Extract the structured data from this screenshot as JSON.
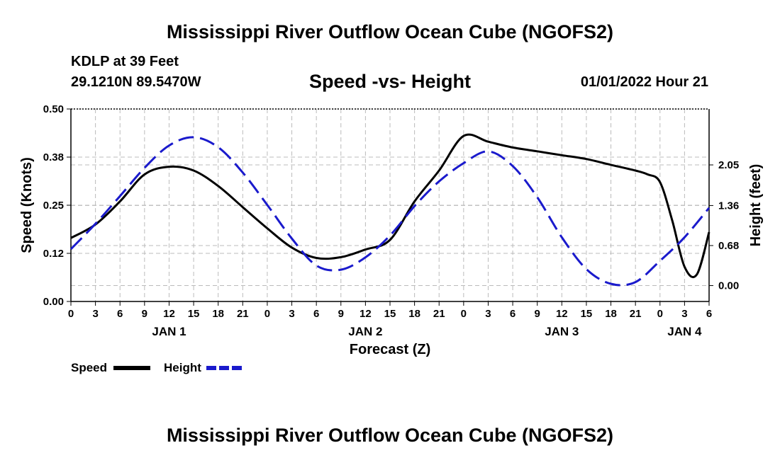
{
  "page": {
    "title": "Mississippi River Outflow Ocean Cube (NGOFS2)",
    "station": "KDLP at 39 Feet",
    "coords": "29.1210N  89.5470W",
    "subtitle": "Speed -vs- Height",
    "datetime": "01/01/2022 Hour 21",
    "footer_title": "Mississippi River Outflow Ocean Cube (NGOFS2)"
  },
  "chart_data": {
    "type": "line",
    "xlabel": "Forecast (Z)",
    "ylabel": "Speed (Knots)",
    "y2label": "Height (feet)",
    "xlim": [
      0,
      78
    ],
    "ylim": [
      0,
      0.5
    ],
    "y2lim": [
      -0.27,
      3.0
    ],
    "grid": true,
    "x_ticks": [
      0,
      3,
      6,
      9,
      12,
      15,
      18,
      21,
      24,
      27,
      30,
      33,
      36,
      39,
      42,
      45,
      48,
      51,
      54,
      57,
      60,
      63,
      66,
      69,
      72,
      75,
      78
    ],
    "x_tick_labels": [
      "0",
      "3",
      "6",
      "9",
      "12",
      "15",
      "18",
      "21",
      "0",
      "3",
      "6",
      "9",
      "12",
      "15",
      "18",
      "21",
      "0",
      "3",
      "6",
      "9",
      "12",
      "15",
      "18",
      "21",
      "0",
      "3",
      "6"
    ],
    "day_labels": [
      {
        "x": 12,
        "label": "JAN 1"
      },
      {
        "x": 36,
        "label": "JAN 2"
      },
      {
        "x": 60,
        "label": "JAN 3"
      },
      {
        "x": 75,
        "label": "JAN 4"
      }
    ],
    "y_ticks": [
      0.0,
      0.125,
      0.25,
      0.375,
      0.5
    ],
    "y_tick_labels": [
      "0.00",
      "0.12",
      "0.25",
      "0.38",
      "0.50"
    ],
    "y2_ticks": [
      0.0,
      0.68,
      1.36,
      2.05
    ],
    "y2_tick_labels": [
      "0.00",
      "0.68",
      "1.36",
      "2.05"
    ],
    "legend": [
      {
        "name": "Speed",
        "color": "#000000",
        "style": "solid"
      },
      {
        "name": "Height",
        "color": "#1a1acc",
        "style": "dashed"
      }
    ],
    "series": [
      {
        "name": "Speed",
        "axis": "left",
        "color": "#000000",
        "x": [
          0,
          3,
          6,
          9,
          12,
          15,
          18,
          21,
          24,
          27,
          30,
          33,
          36,
          39,
          42,
          45,
          48,
          51,
          54,
          57,
          60,
          63,
          66,
          69,
          70.5,
          72,
          73.5,
          75,
          76.5,
          78
        ],
        "values": [
          0.165,
          0.2,
          0.26,
          0.33,
          0.35,
          0.34,
          0.3,
          0.245,
          0.19,
          0.14,
          0.113,
          0.115,
          0.135,
          0.16,
          0.26,
          0.34,
          0.43,
          0.415,
          0.4,
          0.39,
          0.38,
          0.37,
          0.355,
          0.34,
          0.33,
          0.31,
          0.21,
          0.09,
          0.07,
          0.18
        ]
      },
      {
        "name": "Height",
        "axis": "right",
        "color": "#1a1acc",
        "x": [
          0,
          3,
          6,
          9,
          12,
          15,
          18,
          21,
          24,
          27,
          30,
          33,
          36,
          39,
          42,
          45,
          48,
          51,
          54,
          57,
          60,
          63,
          66,
          69,
          72,
          75,
          78
        ],
        "values": [
          0.62,
          1.05,
          1.52,
          2.0,
          2.38,
          2.52,
          2.35,
          1.92,
          1.37,
          0.8,
          0.34,
          0.27,
          0.48,
          0.85,
          1.35,
          1.77,
          2.08,
          2.28,
          2.03,
          1.5,
          0.82,
          0.28,
          0.03,
          0.06,
          0.42,
          0.82,
          1.32
        ]
      }
    ]
  }
}
